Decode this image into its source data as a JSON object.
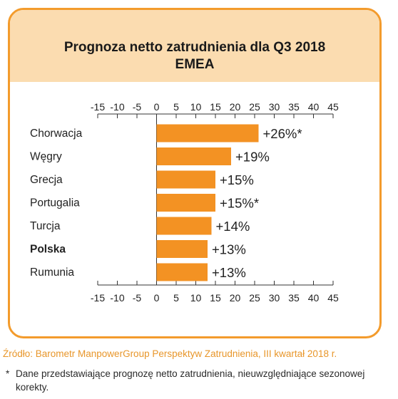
{
  "title": {
    "line1": "Prognoza netto zatrudnienia dla Q3 2018",
    "line2": "EMEA"
  },
  "colors": {
    "accent": "#f39b2c",
    "header_bg": "#fbdcb0",
    "bar": "#f39223",
    "source_text": "#e8962a"
  },
  "chart_data": {
    "type": "bar",
    "orientation": "horizontal",
    "categories": [
      "Chorwacja",
      "Węgry",
      "Grecja",
      "Portugalia",
      "Turcja",
      "Polska",
      "Rumunia"
    ],
    "values": [
      26,
      19,
      15,
      15,
      14,
      13,
      13
    ],
    "data_labels": [
      "+26%*",
      "+19%",
      "+15%",
      "+15%*",
      "+14%",
      "+13%",
      "+13%"
    ],
    "bold_categories": [
      "Polska"
    ],
    "xlim": [
      -15,
      45
    ],
    "xticks": [
      -15,
      -10,
      -5,
      0,
      5,
      10,
      15,
      20,
      25,
      30,
      35,
      40,
      45
    ],
    "tick_labels": [
      "-15",
      "-10",
      "-5",
      "0",
      "5",
      "10",
      "15",
      "20",
      "25",
      "30",
      "35",
      "40",
      "45"
    ],
    "axis_ticks_position": "top and bottom",
    "grid": false
  },
  "source": "Źródło: Barometr ManpowerGroup Perspektyw Zatrudnienia, III kwartał 2018 r.",
  "footnote": {
    "marker": "*",
    "text": "Dane przedstawiające prognozę netto zatrudnienia, nieuwzględniające sezonowej korekty."
  }
}
